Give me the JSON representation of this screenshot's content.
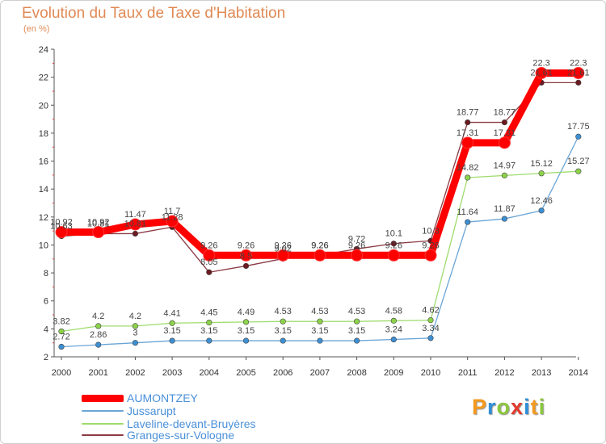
{
  "title": "Evolution du Taux de Taxe d'Habitation",
  "subtitle": "(en %)",
  "logo": {
    "letters": [
      "P",
      "r",
      "o",
      "x",
      "i",
      "t",
      "i"
    ],
    "colors": [
      "#f39a1f",
      "#2f8fd8",
      "#8cc63f",
      "#e33b2e",
      "#2f8fd8",
      "#f39a1f",
      "#8cc63f"
    ]
  },
  "chart_data": {
    "type": "line",
    "title": "Evolution du Taux de Taxe d'Habitation",
    "ylabel": "(en %)",
    "xlabel": "",
    "x": [
      "2000",
      "2001",
      "2002",
      "2003",
      "2004",
      "2005",
      "2006",
      "2007",
      "2008",
      "2009",
      "2010",
      "2011",
      "2012",
      "2013",
      "2014"
    ],
    "ylim": [
      2,
      24
    ],
    "yticks": [
      2,
      4,
      6,
      8,
      10,
      12,
      14,
      16,
      18,
      20,
      22,
      24
    ],
    "grid": false,
    "legend_position": "bottom-left",
    "series": [
      {
        "name": "AUMONTZEY",
        "color": "#ff0000",
        "marker": "#ff0000",
        "values": [
          10.92,
          10.92,
          11.47,
          11.7,
          9.26,
          9.26,
          9.26,
          9.26,
          9.26,
          9.26,
          9.26,
          17.31,
          17.31,
          22.3,
          22.3
        ],
        "labels": [
          "10.92",
          "10.92",
          "11.47",
          "11.7",
          "9.26",
          "9.26",
          "9.26",
          "9.26",
          "9.26",
          "9.26",
          "9.26",
          "17.31",
          "17.31",
          "22.3",
          "22.3"
        ]
      },
      {
        "name": "Jussarupt",
        "color": "#6aa5d6",
        "marker": "#3c8fd2",
        "values": [
          2.72,
          2.86,
          3,
          3.15,
          3.15,
          3.15,
          3.15,
          3.15,
          3.15,
          3.24,
          3.34,
          11.64,
          11.87,
          12.46,
          17.75
        ],
        "labels": [
          "2.72",
          "2.86",
          "3",
          "3.15",
          "3.15",
          "3.15",
          "3.15",
          "3.15",
          "3.15",
          "3.24",
          "3.34",
          "11.64",
          "11.87",
          "12.46",
          "17.75"
        ]
      },
      {
        "name": "Laveline-devant-Bruyères",
        "color": "#9edc6c",
        "marker": "#8cd34a",
        "values": [
          3.82,
          4.2,
          4.2,
          4.41,
          4.45,
          4.49,
          4.53,
          4.53,
          4.53,
          4.58,
          4.62,
          14.82,
          14.97,
          15.12,
          15.27
        ],
        "labels": [
          "3.82",
          "4.2",
          "4.2",
          "4.41",
          "4.45",
          "4.49",
          "4.53",
          "4.53",
          "4.53",
          "4.58",
          "4.62",
          "14.82",
          "14.97",
          "15.12",
          "15.27"
        ]
      },
      {
        "name": "Granges-sur-Vologne",
        "color": "#8b3a44",
        "marker": "#6b1a22",
        "values": [
          10.63,
          10.81,
          10.81,
          11.28,
          8.05,
          8.5,
          9.02,
          9.26,
          9.72,
          10.1,
          10.3,
          18.77,
          18.77,
          21.61,
          21.61
        ],
        "labels": [
          "10.63",
          "10.81",
          "10.81",
          "11.28",
          "8.05",
          "8.5",
          "9.02",
          "9.26",
          "9.72",
          "10.1",
          "10.3",
          "18.77",
          "18.77",
          "21.61",
          "21.61"
        ]
      }
    ]
  }
}
